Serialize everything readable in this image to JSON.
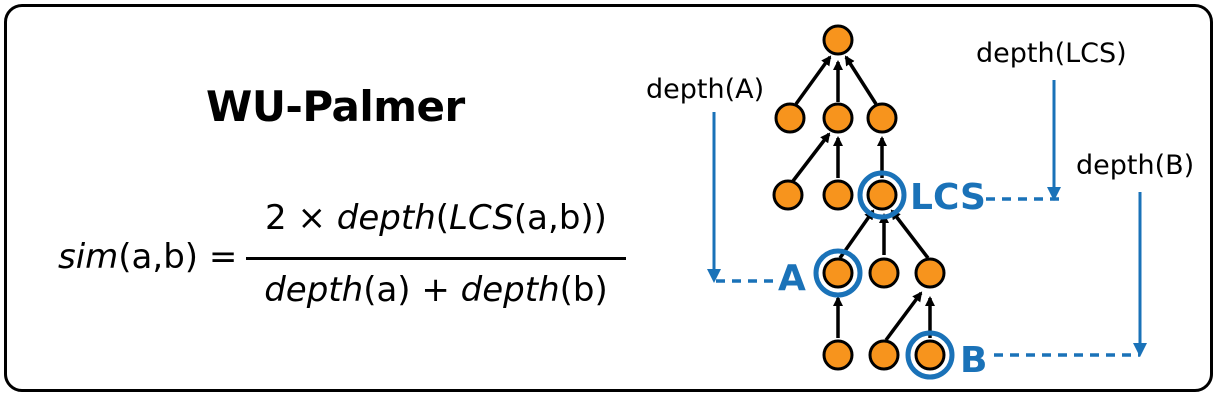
{
  "title": "WU-Palmer",
  "formula": {
    "lhs_fn": "sim",
    "lhs_args": "(a,b) =",
    "num_prefix": "2 × ",
    "num_fn": "depth",
    "num_open": "(",
    "num_inner": "LCS",
    "num_args": "(a,b))",
    "den_fn1": "depth",
    "den_arg1": "(a)",
    "den_plus": " + ",
    "den_fn2": "depth",
    "den_arg2": "(b)"
  },
  "labels": {
    "depth_a": "depth(A)",
    "depth_lcs": "depth(LCS)",
    "depth_b": "depth(B)",
    "node_a": "A",
    "node_b": "B",
    "node_lcs": "LCS"
  },
  "colors": {
    "node_fill": "#f7941d",
    "highlight": "#1a72b8",
    "edge": "#000000"
  }
}
